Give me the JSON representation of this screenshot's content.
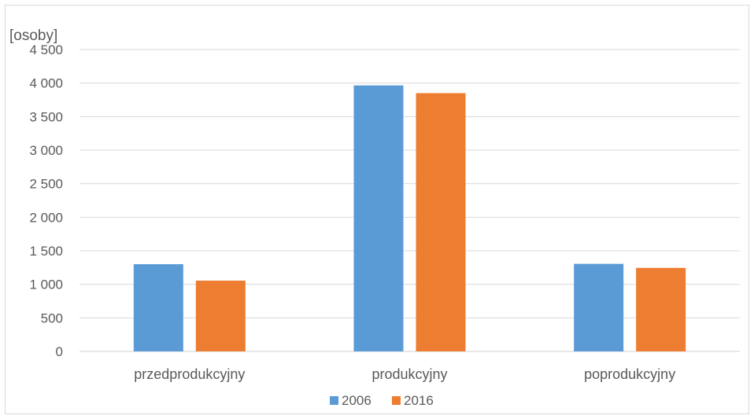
{
  "chart_data": {
    "type": "bar",
    "title": "",
    "unit_label": "[osoby]",
    "xlabel": "",
    "ylabel": "",
    "categories": [
      "przedprodukcyjny",
      "produkcyjny",
      "poprodukcyjny"
    ],
    "series": [
      {
        "name": "2006",
        "color": "#5b9bd5",
        "values": [
          1300,
          3965,
          1305
        ]
      },
      {
        "name": "2016",
        "color": "#ed7d31",
        "values": [
          1055,
          3850,
          1245
        ]
      }
    ],
    "ylim": [
      0,
      4500
    ],
    "yticks": [
      0,
      500,
      1000,
      1500,
      2000,
      2500,
      3000,
      3500,
      4000,
      4500
    ],
    "ytick_labels": [
      "0",
      "500",
      "1 000",
      "1 500",
      "2 000",
      "2 500",
      "3 000",
      "3 500",
      "4 000",
      "4 500"
    ],
    "grid": true,
    "legend_position": "bottom"
  }
}
